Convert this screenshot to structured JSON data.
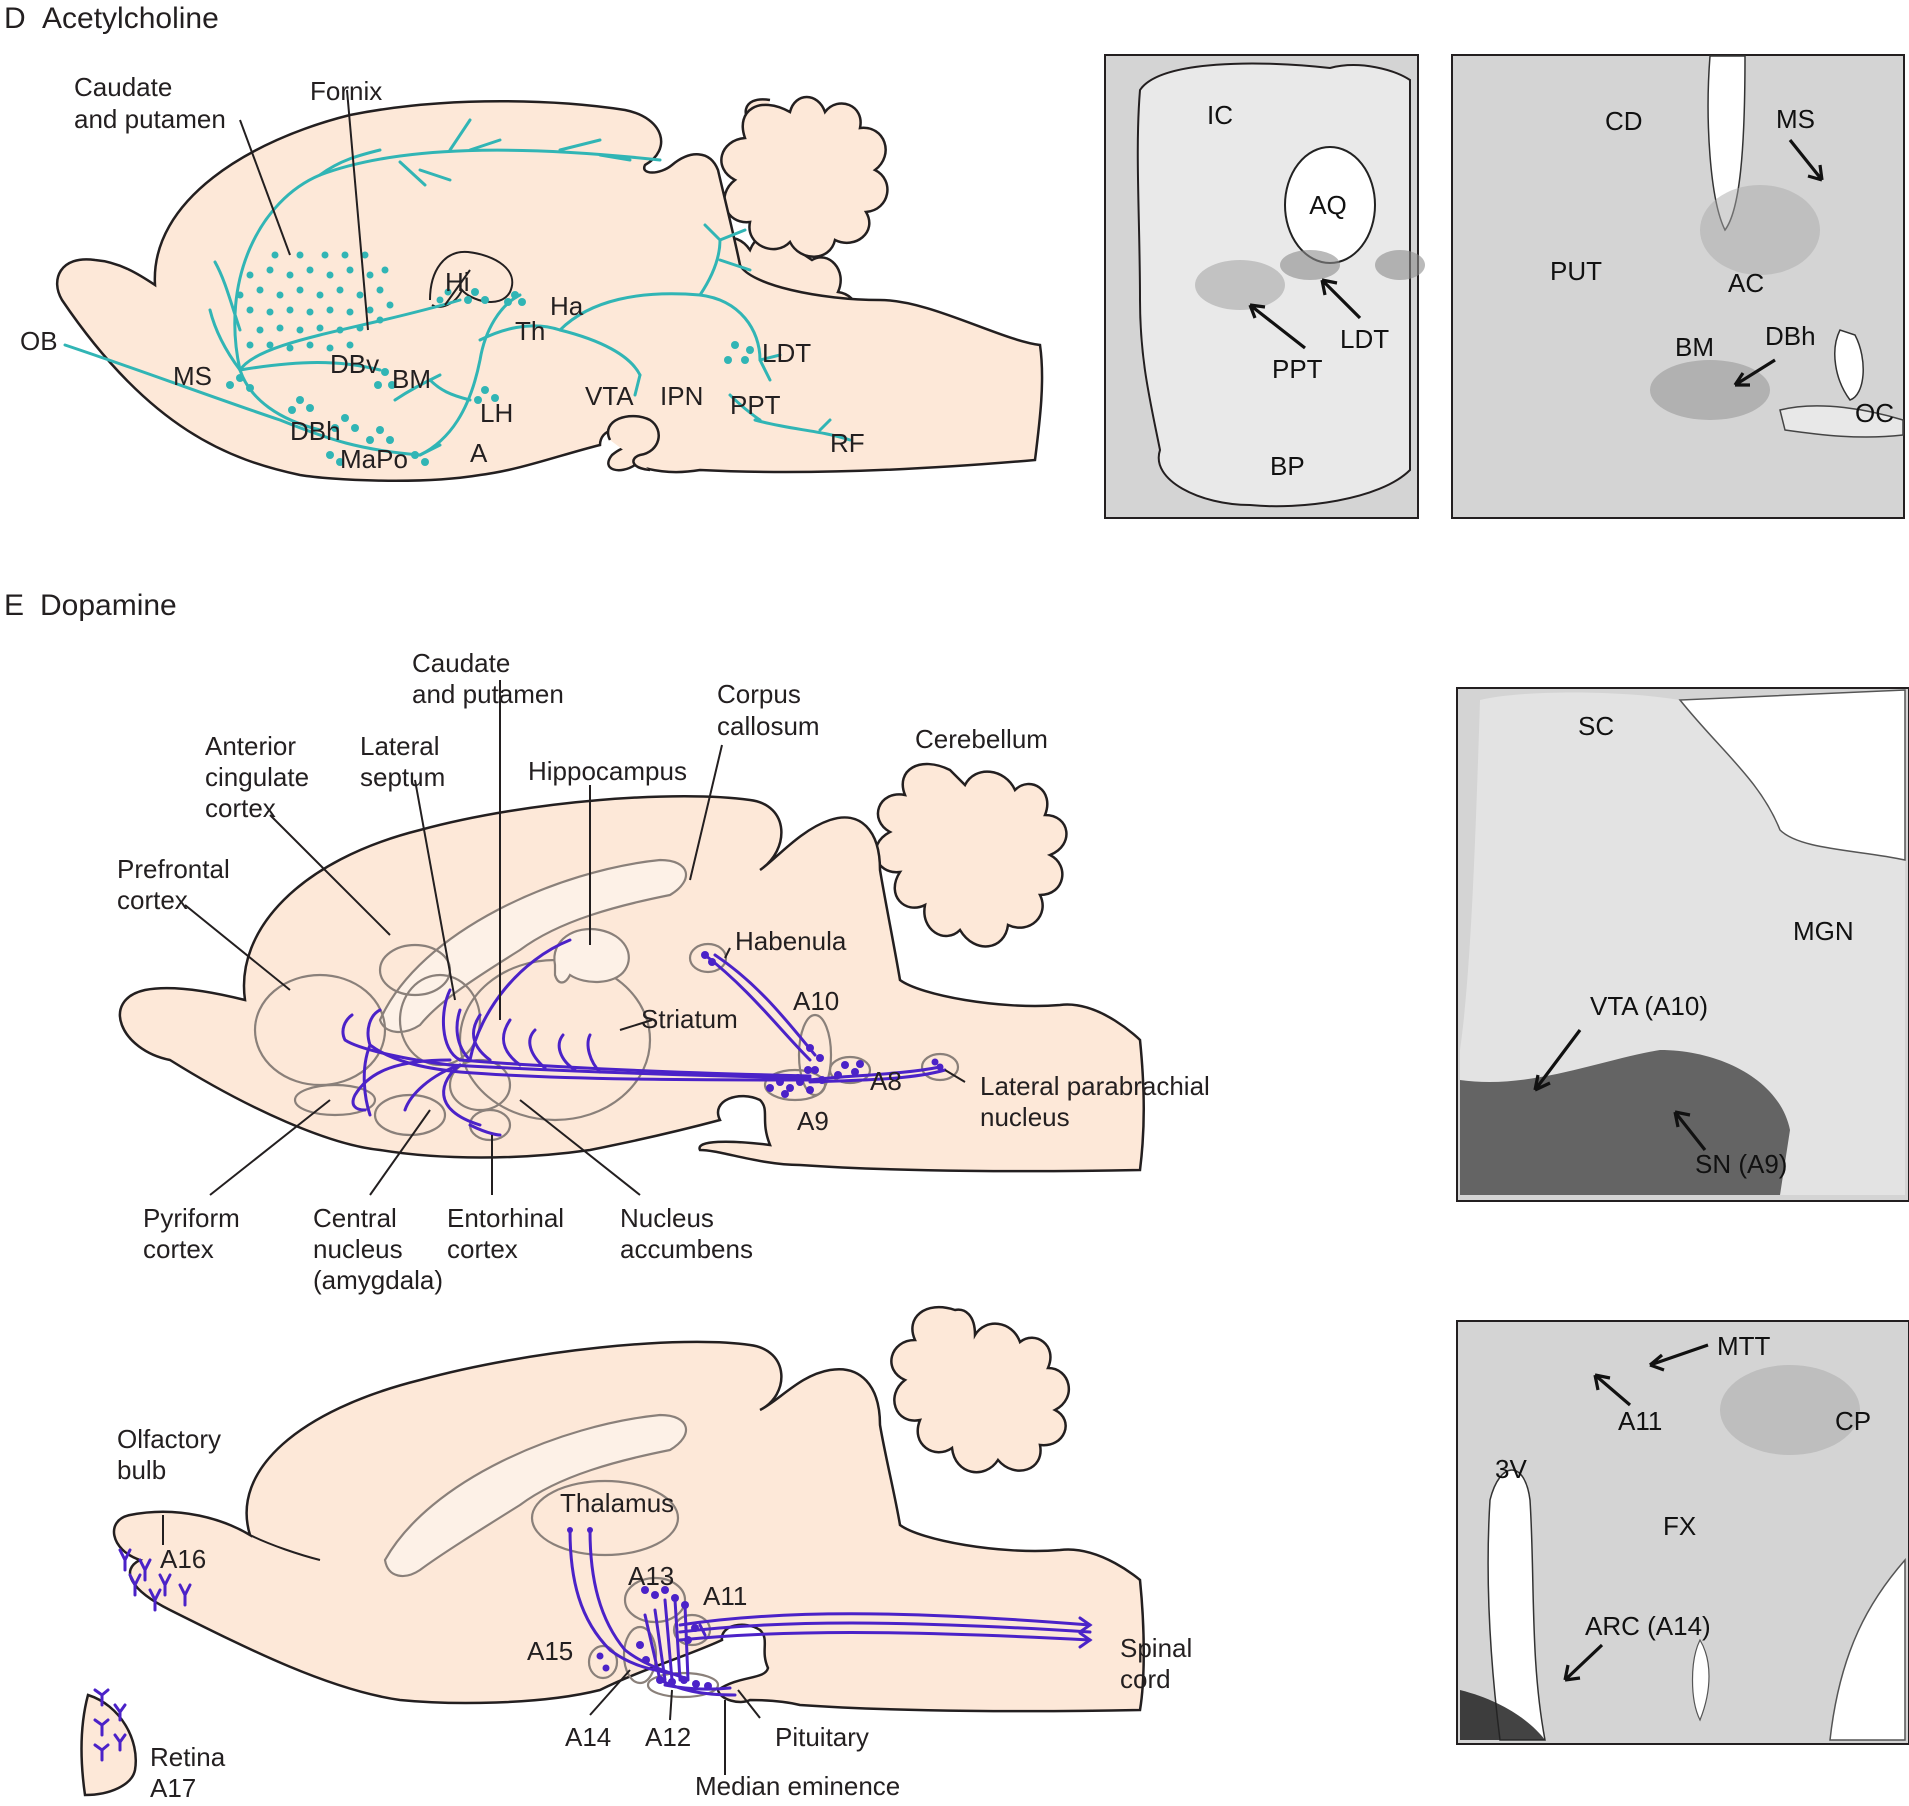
{
  "colors": {
    "brain_fill": "#fde8d8",
    "acetylcholine": "#31b5b5",
    "dopamine": "#4b22c8",
    "micrograph": "#d4d4d4"
  },
  "panel_d": {
    "letter": "D",
    "title": "Acetylcholine",
    "labels": {
      "caudate": [
        "Caudate",
        "and putamen"
      ],
      "fornix": "Fornix",
      "ob": "OB",
      "ms": "MS",
      "hi": "Hi",
      "ha": "Ha",
      "th": "Th",
      "dbv": "DBv",
      "bm": "BM",
      "dbh": "DBh",
      "mapo": "MaPo",
      "a": "A",
      "lh": "LH",
      "vta": "VTA",
      "ipn": "IPN",
      "ldt": "LDT",
      "ppt": "PPT",
      "rf": "RF"
    },
    "micrograph_left": {
      "ic": "IC",
      "aq": "AQ",
      "ldt": "LDT",
      "ppt": "PPT",
      "bp": "BP"
    },
    "micrograph_right": {
      "cd": "CD",
      "ms": "MS",
      "put": "PUT",
      "ac": "AC",
      "bm": "BM",
      "dbh": "DBh",
      "oc": "OC"
    }
  },
  "panel_e": {
    "letter": "E",
    "title": "Dopamine",
    "upper_labels": {
      "caudate": [
        "Caudate",
        "and putamen"
      ],
      "corpus": [
        "Corpus",
        "callosum"
      ],
      "cerebellum": "Cerebellum",
      "anterior": [
        "Anterior",
        "cingulate",
        "cortex"
      ],
      "lateral_septum": [
        "Lateral",
        "septum"
      ],
      "hippocampus": "Hippocampus",
      "prefrontal": [
        "Prefrontal",
        "cortex"
      ],
      "habenula": "Habenula",
      "a10": "A10",
      "striatum": "Striatum",
      "a8": "A8",
      "a9": "A9",
      "lateral_parabrachial": [
        "Lateral parabrachial",
        "nucleus"
      ],
      "pyriform": [
        "Pyriform",
        "cortex"
      ],
      "central": [
        "Central",
        "nucleus",
        "(amygdala)"
      ],
      "entorhinal": [
        "Entorhinal",
        "cortex"
      ],
      "accumbens": [
        "Nucleus",
        "accumbens"
      ]
    },
    "lower_labels": {
      "olfactory": [
        "Olfactory",
        "bulb"
      ],
      "a16": "A16",
      "thalamus": "Thalamus",
      "a13": "A13",
      "a11": "A11",
      "a15": "A15",
      "spinal": [
        "Spinal",
        "cord"
      ],
      "a14": "A14",
      "a12": "A12",
      "pituitary": "Pituitary",
      "median": "Median eminence",
      "retina": [
        "Retina",
        "A17"
      ]
    },
    "micrograph_upper": {
      "sc": "SC",
      "mgn": "MGN",
      "vta": "VTA (A10)",
      "sn": "SN (A9)"
    },
    "micrograph_lower": {
      "mtt": "MTT",
      "a11": "A11",
      "cp": "CP",
      "v3": "3V",
      "fx": "FX",
      "arc": "ARC (A14)"
    }
  }
}
